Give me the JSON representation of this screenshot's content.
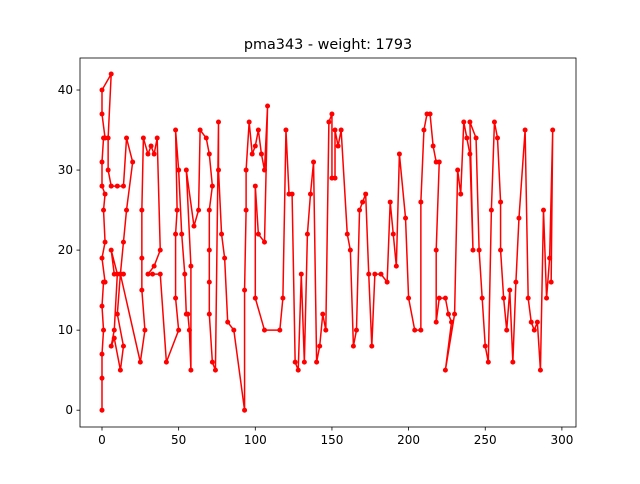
{
  "chart_data": {
    "type": "line",
    "title": "pma343 - weight: 1793",
    "color": "#ff0000",
    "x": [
      0,
      0,
      0,
      1,
      0,
      1,
      2,
      0,
      2,
      1,
      2,
      0,
      0,
      1,
      2,
      0,
      0,
      6,
      4,
      4,
      6,
      10,
      14,
      16,
      20,
      16,
      14,
      12,
      14,
      8,
      6,
      10,
      8,
      6,
      8,
      12,
      14,
      10,
      12,
      25,
      28,
      26,
      26,
      26,
      27,
      30,
      32,
      34,
      36,
      38,
      34,
      30,
      33,
      38,
      42,
      50,
      48,
      48,
      49,
      48,
      50,
      52,
      54,
      55,
      56,
      57,
      58,
      58,
      55,
      60,
      63,
      64,
      68,
      70,
      72,
      70,
      70,
      70,
      70,
      72,
      74,
      76,
      76,
      78,
      80,
      82,
      86,
      93,
      93,
      94,
      94,
      96,
      98,
      100,
      102,
      104,
      106,
      108,
      106,
      102,
      100,
      100,
      106,
      116,
      118,
      120,
      122,
      124,
      126,
      128,
      130,
      132,
      134,
      136,
      138,
      140,
      142,
      144,
      146,
      148,
      150,
      150,
      152,
      152,
      154,
      156,
      160,
      162,
      164,
      166,
      168,
      170,
      172,
      174,
      176,
      178,
      182,
      186,
      188,
      190,
      192,
      194,
      198,
      200,
      204,
      208,
      208,
      210,
      212,
      214,
      216,
      218,
      220,
      218,
      218,
      220,
      224,
      226,
      228,
      224,
      230,
      232,
      234,
      236,
      238,
      240,
      242,
      240,
      244,
      246,
      248,
      250,
      252,
      254,
      256,
      258,
      260,
      260,
      262,
      264,
      266,
      268,
      270,
      272,
      276,
      278,
      280,
      282,
      284,
      286,
      288,
      290,
      292,
      294,
      293
    ],
    "y": [
      0,
      4,
      7,
      10,
      13,
      16,
      16,
      19,
      21,
      25,
      27,
      28,
      31,
      34,
      34,
      37,
      40,
      42,
      34,
      30,
      28,
      28,
      28,
      34,
      31,
      25,
      21,
      17,
      17,
      17,
      20,
      17,
      10,
      8,
      9,
      5,
      8,
      12,
      17,
      6,
      10,
      15,
      19,
      25,
      34,
      32,
      33,
      32,
      34,
      20,
      18,
      17,
      17,
      17,
      6,
      10,
      14,
      22,
      25,
      35,
      30,
      22,
      17,
      12,
      12,
      10,
      5,
      18,
      30,
      23,
      25,
      35,
      34,
      32,
      28,
      25,
      20,
      16,
      12,
      6,
      5,
      36,
      30,
      22,
      19,
      11,
      10,
      0,
      15,
      25,
      30,
      36,
      32,
      33,
      35,
      32,
      30,
      38,
      21,
      22,
      28,
      14,
      10,
      10,
      14,
      35,
      27,
      27,
      6,
      5,
      17,
      6,
      22,
      27,
      31,
      6,
      8,
      12,
      10,
      36,
      37,
      29,
      29,
      35,
      33,
      35,
      22,
      20,
      8,
      10,
      25,
      26,
      27,
      17,
      8,
      17,
      17,
      16,
      26,
      22,
      18,
      32,
      24,
      14,
      10,
      10,
      26,
      35,
      37,
      37,
      33,
      31,
      31,
      20,
      11,
      14,
      14,
      12,
      11,
      5,
      12,
      30,
      27,
      36,
      34,
      32,
      20,
      36,
      34,
      20,
      14,
      8,
      6,
      25,
      36,
      34,
      26,
      20,
      14,
      10,
      15,
      6,
      16,
      24,
      35,
      14,
      11,
      10,
      11,
      5,
      25,
      14,
      19,
      35,
      16
    ],
    "xlim": [
      -14.35,
      309.2
    ],
    "ylim": [
      -2.1,
      44
    ],
    "xticks": [
      0,
      50,
      100,
      150,
      200,
      250,
      300
    ],
    "yticks": [
      0,
      10,
      20,
      30,
      40
    ]
  }
}
